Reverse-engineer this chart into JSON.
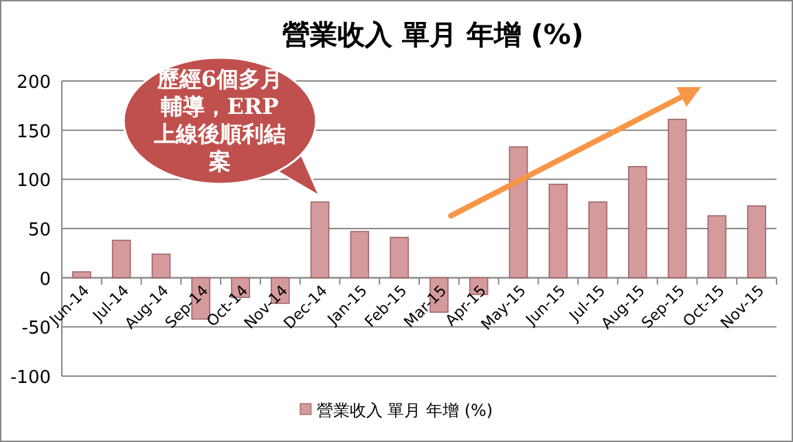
{
  "chart_data": {
    "type": "bar",
    "title": "營業收入 單月 年增 (%)",
    "categories": [
      "Jun-14",
      "Jul-14",
      "Aug-14",
      "Sep-14",
      "Oct-14",
      "Nov-14",
      "Dec-14",
      "Jan-15",
      "Feb-15",
      "Mar-15",
      "Apr-15",
      "May-15",
      "Jun-15",
      "Jul-15",
      "Aug-15",
      "Sep-15",
      "Oct-15",
      "Nov-15"
    ],
    "series": [
      {
        "name": "營業收入 單月 年增 (%)",
        "color": "#d49a9c",
        "values": [
          6,
          38,
          24,
          -42,
          -20,
          -26,
          77,
          47,
          41,
          -35,
          -17,
          133,
          95,
          77,
          113,
          161,
          63,
          73
        ]
      }
    ],
    "ylim": [
      -100,
      200
    ],
    "yticks": [
      -100,
      -50,
      0,
      50,
      100,
      150,
      200
    ],
    "grid": "y",
    "legend": "bottom",
    "annotations": [
      {
        "text": "歷經6個多月輔導，ERP上線後順利結案",
        "x": "Dec-14",
        "y": 77
      }
    ]
  }
}
